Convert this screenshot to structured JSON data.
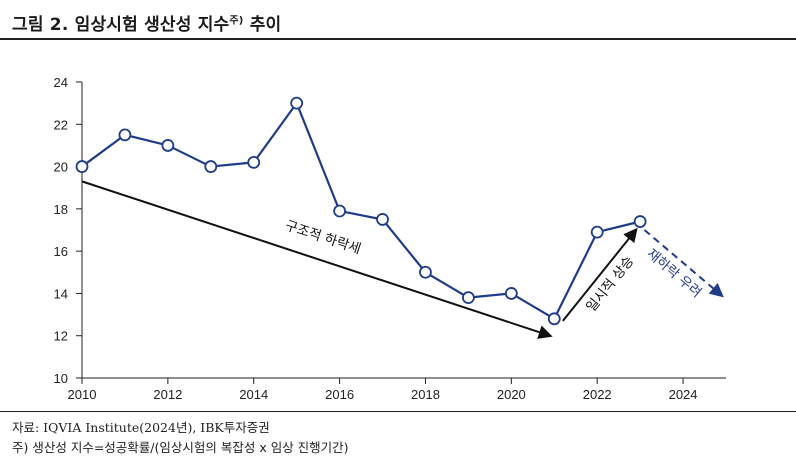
{
  "header": {
    "title": "그림 2. 임상시험 생산성 지수",
    "title_sup": "주)",
    "title_tail": " 추이"
  },
  "footer": {
    "source": "자료: IQVIA Institute(2024년), IBK투자증권",
    "footnote": "주) 생산성 지수=성공확률/(임상시험의 복잡성 x 임상 진행기간)"
  },
  "chart_data": {
    "type": "line",
    "title": "",
    "xlabel": "",
    "ylabel": "",
    "xlim": [
      2010,
      2025
    ],
    "ylim": [
      10,
      24
    ],
    "x_ticks": [
      2010,
      2012,
      2014,
      2016,
      2018,
      2020,
      2022,
      2024
    ],
    "y_ticks": [
      10,
      12,
      14,
      16,
      18,
      20,
      22,
      24
    ],
    "grid": false,
    "line_color": "#1f3c88",
    "series": [
      {
        "x": [
          2010,
          2011,
          2012,
          2013,
          2014,
          2015,
          2016,
          2017,
          2018,
          2019,
          2020,
          2021,
          2022,
          2023
        ],
        "values": [
          20.0,
          21.5,
          21.0,
          20.0,
          20.2,
          23.0,
          17.9,
          17.5,
          15.0,
          13.8,
          14.0,
          12.8,
          16.9,
          17.4
        ]
      }
    ],
    "annotations": [
      {
        "text": "구조적 하락세",
        "from": [
          2010,
          19.3
        ],
        "to": [
          2020.9,
          12.0
        ],
        "style": "solid",
        "color": "#111111"
      },
      {
        "text": "일시적 상승",
        "from": [
          2021.2,
          12.7
        ],
        "to": [
          2022.9,
          17.0
        ],
        "style": "solid",
        "color": "#111111"
      },
      {
        "text": "재하락 우려",
        "from": [
          2023.1,
          17.0
        ],
        "to": [
          2024.9,
          13.9
        ],
        "style": "dashed",
        "color": "#1f3c88"
      }
    ]
  }
}
